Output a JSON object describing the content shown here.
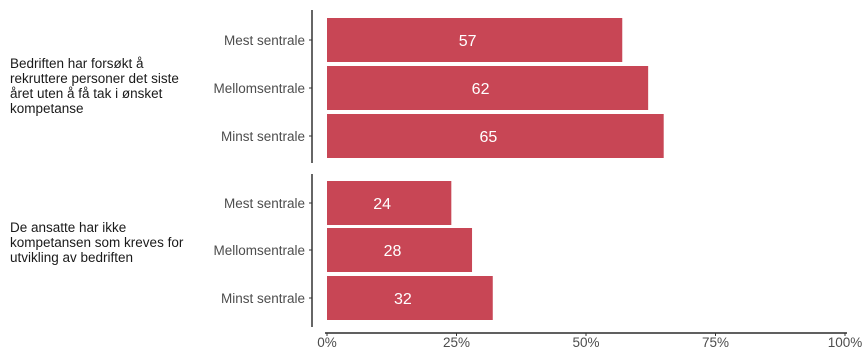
{
  "chart_data": {
    "type": "bar",
    "orientation": "horizontal",
    "colors": {
      "bar": "#C84655",
      "axis": "#000000",
      "text": "#4d4d4d"
    },
    "xlim": [
      0,
      100
    ],
    "x_ticks": [
      "0%",
      "25%",
      "50%",
      "75%",
      "100%"
    ],
    "x_tick_values": [
      0,
      25,
      50,
      75,
      100
    ],
    "grid": false,
    "groups": [
      {
        "label": "Bedriften har forsøkt å rekruttere personer det siste året uten å få tak i ønsket kompetanse",
        "categories": [
          "Mest sentrale",
          "Mellomsentrale",
          "Minst sentrale"
        ],
        "values": [
          57,
          62,
          65
        ],
        "value_labels": [
          "57",
          "62",
          "65"
        ]
      },
      {
        "label": "De ansatte har ikke kompetansen som kreves for utvikling av bedriften",
        "categories": [
          "Mest sentrale",
          "Mellomsentrale",
          "Minst sentrale"
        ],
        "values": [
          24,
          28,
          32
        ],
        "value_labels": [
          "24",
          "28",
          "32"
        ]
      }
    ]
  }
}
